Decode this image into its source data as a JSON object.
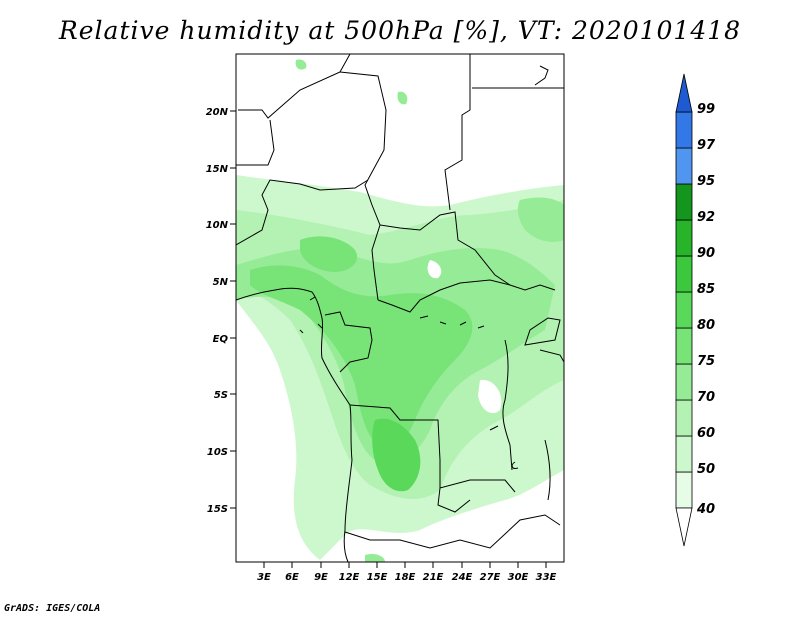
{
  "title": "Relative humidity at 500hPa [%], VT: 2020101418",
  "footer": "GrADS: IGES/COLA",
  "map": {
    "lat_labels": [
      "20N",
      "15N",
      "10N",
      "5N",
      "EQ",
      "5S",
      "10S",
      "15S"
    ],
    "lon_labels": [
      "3E",
      "6E",
      "9E",
      "12E",
      "15E",
      "18E",
      "21E",
      "24E",
      "27E",
      "30E",
      "33E"
    ]
  },
  "colorbar": {
    "levels": [
      "40",
      "50",
      "60",
      "70",
      "75",
      "80",
      "85",
      "90",
      "92",
      "95",
      "97",
      "99"
    ],
    "colors": [
      "#ffffff",
      "#e6fce6",
      "#cdf8cd",
      "#b4f2b4",
      "#96ec96",
      "#78e478",
      "#5ad85a",
      "#3cc83c",
      "#28b428",
      "#14961e",
      "#5096f0",
      "#3278e6",
      "#1e5ad2"
    ]
  }
}
